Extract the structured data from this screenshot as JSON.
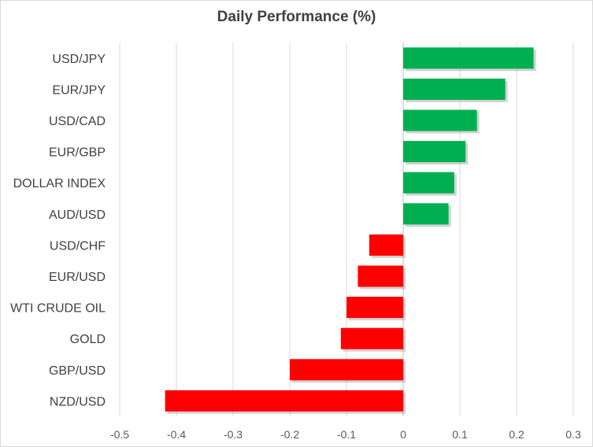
{
  "chart_data": {
    "type": "bar",
    "orientation": "horizontal",
    "title": "Daily Performance  (%)",
    "xlabel": "",
    "ylabel": "",
    "categories": [
      "USD/JPY",
      "EUR/JPY",
      "USD/CAD",
      "EUR/GBP",
      "DOLLAR INDEX",
      "AUD/USD",
      "USD/CHF",
      "EUR/USD",
      "WTI CRUDE OIL",
      "GOLD",
      "GBP/USD",
      "NZD/USD"
    ],
    "values": [
      0.23,
      0.18,
      0.13,
      0.11,
      0.09,
      0.08,
      -0.06,
      -0.08,
      -0.1,
      -0.11,
      -0.2,
      -0.42
    ],
    "xlim": [
      -0.5,
      0.3
    ],
    "x_ticks": [
      -0.5,
      -0.4,
      -0.3,
      -0.2,
      -0.1,
      0,
      0.1,
      0.2,
      0.3
    ],
    "x_tick_labels": [
      "-0.5",
      "-0.4",
      "-0.3",
      "-0.2",
      "-0.1",
      "0",
      "0.1",
      "0.2",
      "0.3"
    ],
    "grid": "vertical",
    "legend": "none",
    "colors": {
      "positive": "#00b050",
      "negative": "#ff0000",
      "grid": "#d9d9d9",
      "axis": "#bfbfbf",
      "text": "#404040"
    }
  }
}
